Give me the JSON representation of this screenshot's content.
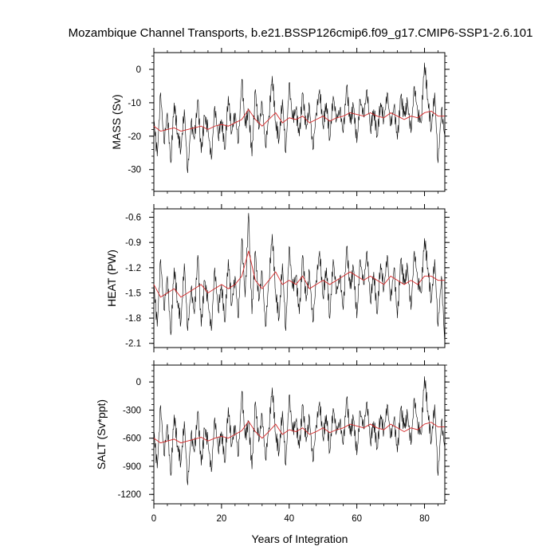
{
  "chart_data": {
    "title": "Mozambique Channel Transports, b.e21.BSSP126cmip6.f09_g17.CMIP6-SSP1-2.6.101",
    "xlabel": "Years of Integration",
    "x_ticks": [
      0,
      20,
      40,
      60,
      80
    ],
    "xlim": [
      0,
      86
    ],
    "colors": {
      "raw": "#000000",
      "smooth": "#d62728"
    },
    "panels": [
      {
        "type": "line",
        "ylabel": "MASS (Sv)",
        "ylim": [
          -36.5,
          5
        ],
        "y_ticks": [
          0,
          -10,
          -20,
          -30
        ],
        "series": [
          {
            "name": "",
            "role": "monthly",
            "color": "#000000",
            "x": [
              0,
              1,
              2,
              3,
              4,
              5,
              6,
              7,
              8,
              9,
              10,
              11,
              12,
              13,
              14,
              15,
              16,
              17,
              18,
              19,
              20,
              21,
              22,
              23,
              24,
              25,
              26,
              27,
              28,
              29,
              30,
              31,
              32,
              33,
              34,
              35,
              36,
              37,
              38,
              39,
              40,
              41,
              42,
              43,
              44,
              45,
              46,
              47,
              48,
              49,
              50,
              51,
              52,
              53,
              54,
              55,
              56,
              57,
              58,
              59,
              60,
              61,
              62,
              63,
              64,
              65,
              66,
              67,
              68,
              69,
              70,
              71,
              72,
              73,
              74,
              75,
              76,
              77,
              78,
              79,
              80,
              81,
              82,
              83,
              84,
              85,
              86
            ],
            "values": [
              -15,
              -26,
              -7,
              -22,
              -13,
              -28,
              -10,
              -19,
              -24,
              -12,
              -31,
              -16,
              -21,
              -9,
              -25,
              -14,
              -18,
              -27,
              -11,
              -20,
              -15,
              -24,
              -8,
              -19,
              -13,
              -22,
              -3,
              -17,
              -12,
              -26,
              -6,
              -18,
              -10,
              -23,
              -14,
              -2,
              -16,
              -21,
              -9,
              -25,
              -4,
              -15,
              -12,
              -20,
              -7,
              -18,
              -11,
              -24,
              -13,
              -6,
              -17,
              -10,
              -21,
              -8,
              -15,
              -12,
              -19,
              -5,
              -16,
              -11,
              -22,
              -9,
              -14,
              -6,
              -18,
              -12,
              -20,
              -10,
              -15,
              -7,
              -17,
              -11,
              -21,
              -8,
              -14,
              -10,
              -19,
              -5,
              -13,
              -16,
              2,
              -9,
              -18,
              -7,
              -28,
              -12,
              -20
            ]
          },
          {
            "name": "",
            "role": "annual",
            "color": "#d62728",
            "x": [
              0,
              2,
              4,
              6,
              8,
              10,
              12,
              14,
              16,
              18,
              20,
              22,
              24,
              26,
              28,
              30,
              32,
              34,
              36,
              38,
              40,
              42,
              44,
              46,
              48,
              50,
              52,
              54,
              56,
              58,
              60,
              62,
              64,
              66,
              68,
              70,
              72,
              74,
              76,
              78,
              80,
              82,
              84,
              86
            ],
            "values": [
              -17,
              -18.5,
              -18,
              -17.5,
              -18.5,
              -18,
              -17.5,
              -17,
              -18,
              -17,
              -16.5,
              -17,
              -16,
              -15,
              -12,
              -15,
              -17,
              -15,
              -13,
              -16,
              -14.5,
              -15,
              -14,
              -16,
              -15,
              -14,
              -15.5,
              -14.5,
              -14,
              -13,
              -13.5,
              -14,
              -13,
              -14,
              -14.5,
              -13,
              -14,
              -15,
              -14,
              -14.5,
              -13,
              -12.5,
              -14,
              -14
            ]
          }
        ]
      },
      {
        "type": "line",
        "ylabel": "HEAT (PW)",
        "ylim": [
          -2.15,
          -0.5
        ],
        "y_ticks": [
          -0.6,
          -0.9,
          -1.2,
          -1.5,
          -1.8,
          -2.1
        ],
        "series": [
          {
            "name": "",
            "role": "monthly",
            "color": "#000000",
            "x": [
              0,
              1,
              2,
              3,
              4,
              5,
              6,
              7,
              8,
              9,
              10,
              11,
              12,
              13,
              14,
              15,
              16,
              17,
              18,
              19,
              20,
              21,
              22,
              23,
              24,
              25,
              26,
              27,
              28,
              29,
              30,
              31,
              32,
              33,
              34,
              35,
              36,
              37,
              38,
              39,
              40,
              41,
              42,
              43,
              44,
              45,
              46,
              47,
              48,
              49,
              50,
              51,
              52,
              53,
              54,
              55,
              56,
              57,
              58,
              59,
              60,
              61,
              62,
              63,
              64,
              65,
              66,
              67,
              68,
              69,
              70,
              71,
              72,
              73,
              74,
              75,
              76,
              77,
              78,
              79,
              80,
              81,
              82,
              83,
              84,
              85,
              86
            ],
            "values": [
              -1.4,
              -1.9,
              -1.1,
              -1.7,
              -1.3,
              -2.0,
              -1.2,
              -1.6,
              -1.85,
              -1.15,
              -1.95,
              -1.45,
              -1.75,
              -1.05,
              -1.9,
              -1.35,
              -1.6,
              -1.95,
              -1.2,
              -1.7,
              -1.4,
              -1.85,
              -1.1,
              -1.65,
              -1.3,
              -1.8,
              -0.85,
              -1.55,
              -0.55,
              -1.75,
              -1.0,
              -1.6,
              -1.25,
              -1.9,
              -1.35,
              -0.8,
              -1.5,
              -1.8,
              -1.15,
              -1.95,
              -0.95,
              -1.45,
              -1.3,
              -1.75,
              -1.05,
              -1.6,
              -1.25,
              -1.85,
              -1.35,
              -1.0,
              -1.55,
              -1.2,
              -1.8,
              -1.1,
              -1.5,
              -1.3,
              -1.7,
              -0.95,
              -1.45,
              -1.2,
              -1.8,
              -1.1,
              -1.4,
              -1.0,
              -1.6,
              -1.25,
              -1.75,
              -1.15,
              -1.45,
              -1.05,
              -1.6,
              -1.2,
              -1.8,
              -1.1,
              -1.4,
              -1.2,
              -1.7,
              -1.0,
              -1.35,
              -1.5,
              -0.85,
              -1.2,
              -1.6,
              -1.1,
              -1.9,
              -1.3,
              -2.1
            ]
          },
          {
            "name": "",
            "role": "annual",
            "color": "#d62728",
            "x": [
              0,
              2,
              4,
              6,
              8,
              10,
              12,
              14,
              16,
              18,
              20,
              22,
              24,
              26,
              28,
              30,
              32,
              34,
              36,
              38,
              40,
              42,
              44,
              46,
              48,
              50,
              52,
              54,
              56,
              58,
              60,
              62,
              64,
              66,
              68,
              70,
              72,
              74,
              76,
              78,
              80,
              82,
              84,
              86
            ],
            "values": [
              -1.4,
              -1.55,
              -1.5,
              -1.45,
              -1.55,
              -1.5,
              -1.45,
              -1.4,
              -1.5,
              -1.45,
              -1.4,
              -1.45,
              -1.4,
              -1.3,
              -1.0,
              -1.35,
              -1.45,
              -1.35,
              -1.25,
              -1.4,
              -1.35,
              -1.4,
              -1.3,
              -1.45,
              -1.4,
              -1.35,
              -1.4,
              -1.35,
              -1.3,
              -1.25,
              -1.3,
              -1.35,
              -1.3,
              -1.35,
              -1.4,
              -1.3,
              -1.35,
              -1.4,
              -1.35,
              -1.4,
              -1.3,
              -1.3,
              -1.35,
              -1.35
            ]
          }
        ]
      },
      {
        "type": "line",
        "ylabel": "SALT (Sv*ppt)",
        "ylim": [
          -1300,
          180
        ],
        "y_ticks": [
          0,
          -300,
          -600,
          -900,
          -1200
        ],
        "series": [
          {
            "name": "",
            "role": "monthly",
            "color": "#000000",
            "x": [
              0,
              1,
              2,
              3,
              4,
              5,
              6,
              7,
              8,
              9,
              10,
              11,
              12,
              13,
              14,
              15,
              16,
              17,
              18,
              19,
              20,
              21,
              22,
              23,
              24,
              25,
              26,
              27,
              28,
              29,
              30,
              31,
              32,
              33,
              34,
              35,
              36,
              37,
              38,
              39,
              40,
              41,
              42,
              43,
              44,
              45,
              46,
              47,
              48,
              49,
              50,
              51,
              52,
              53,
              54,
              55,
              56,
              57,
              58,
              59,
              60,
              61,
              62,
              63,
              64,
              65,
              66,
              67,
              68,
              69,
              70,
              71,
              72,
              73,
              74,
              75,
              76,
              77,
              78,
              79,
              80,
              81,
              82,
              83,
              84,
              85,
              86
            ],
            "values": [
              -520,
              -920,
              -250,
              -780,
              -450,
              -1000,
              -350,
              -680,
              -860,
              -420,
              -1100,
              -560,
              -750,
              -310,
              -890,
              -500,
              -640,
              -960,
              -380,
              -720,
              -530,
              -860,
              -270,
              -680,
              -460,
              -790,
              -100,
              -600,
              -420,
              -930,
              -210,
              -640,
              -350,
              -820,
              -490,
              -60,
              -560,
              -750,
              -310,
              -890,
              -140,
              -530,
              -420,
              -710,
              -240,
              -640,
              -380,
              -850,
              -460,
              -210,
              -600,
              -350,
              -750,
              -280,
              -530,
              -420,
              -670,
              -170,
              -560,
              -390,
              -780,
              -310,
              -490,
              -210,
              -640,
              -420,
              -710,
              -350,
              -530,
              -240,
              -600,
              -390,
              -750,
              -280,
              -490,
              -350,
              -670,
              -170,
              -460,
              -560,
              60,
              -310,
              -640,
              -240,
              -1000,
              -420,
              -700
            ]
          },
          {
            "name": "",
            "role": "annual",
            "color": "#d62728",
            "x": [
              0,
              2,
              4,
              6,
              8,
              10,
              12,
              14,
              16,
              18,
              20,
              22,
              24,
              26,
              28,
              30,
              32,
              34,
              36,
              38,
              40,
              42,
              44,
              46,
              48,
              50,
              52,
              54,
              56,
              58,
              60,
              62,
              64,
              66,
              68,
              70,
              72,
              74,
              76,
              78,
              80,
              82,
              84,
              86
            ],
            "values": [
              -600,
              -650,
              -630,
              -610,
              -650,
              -630,
              -610,
              -590,
              -630,
              -600,
              -580,
              -600,
              -560,
              -520,
              -420,
              -530,
              -600,
              -530,
              -450,
              -560,
              -510,
              -530,
              -490,
              -560,
              -530,
              -490,
              -540,
              -510,
              -490,
              -450,
              -470,
              -490,
              -450,
              -490,
              -510,
              -450,
              -490,
              -530,
              -490,
              -510,
              -450,
              -430,
              -480,
              -480
            ]
          }
        ]
      }
    ]
  }
}
